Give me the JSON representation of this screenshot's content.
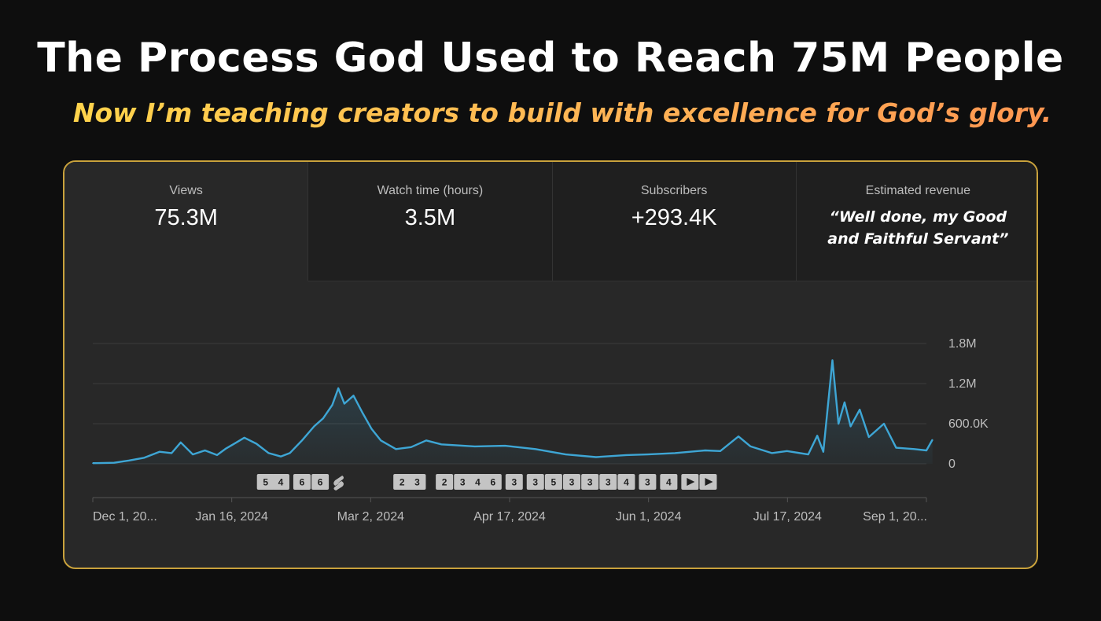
{
  "headline": "The Process God Used to Reach 75M People",
  "subheadline": "Now I’m teaching creators to build with excellence for God’s glory.",
  "metrics": [
    {
      "label": "Views",
      "value": "75.3M"
    },
    {
      "label": "Watch time (hours)",
      "value": "3.5M"
    },
    {
      "label": "Subscribers",
      "value": "+293.4K"
    },
    {
      "label": "Estimated revenue",
      "value": "“Well done, my Good and Faithful Servant”"
    }
  ],
  "colors": {
    "line": "#3ea6d5",
    "border": "#c9a23c",
    "headline": "#ffffff"
  },
  "chart_data": {
    "type": "area",
    "title": "",
    "xlabel": "",
    "ylabel": "",
    "series_name": "",
    "x_start": "Dec 1, 2023",
    "x_end": "Sep 1, 2024",
    "x_ticks": [
      "Dec 1, 20...",
      "Jan 16, 2024",
      "Mar 2, 2024",
      "Apr 17, 2024",
      "Jun 1, 2024",
      "Jul 17, 2024",
      "Sep 1, 20..."
    ],
    "y_ticks": [
      "0",
      "600.0K",
      "1.2M",
      "1.8M"
    ],
    "ylim": [
      0,
      1800000
    ],
    "grid": true,
    "values": [
      {
        "x": "Dec 1, 2023",
        "y": 10000
      },
      {
        "x": "Dec 8, 2023",
        "y": 15000
      },
      {
        "x": "Dec 13, 2023",
        "y": 50000
      },
      {
        "x": "Dec 18, 2023",
        "y": 90000
      },
      {
        "x": "Dec 23, 2023",
        "y": 180000
      },
      {
        "x": "Dec 27, 2023",
        "y": 160000
      },
      {
        "x": "Dec 30, 2023",
        "y": 320000
      },
      {
        "x": "Jan 3, 2024",
        "y": 140000
      },
      {
        "x": "Jan 7, 2024",
        "y": 200000
      },
      {
        "x": "Jan 11, 2024",
        "y": 130000
      },
      {
        "x": "Jan 14, 2024",
        "y": 230000
      },
      {
        "x": "Jan 17, 2024",
        "y": 310000
      },
      {
        "x": "Jan 20, 2024",
        "y": 390000
      },
      {
        "x": "Jan 24, 2024",
        "y": 300000
      },
      {
        "x": "Jan 28, 2024",
        "y": 160000
      },
      {
        "x": "Feb 1, 2024",
        "y": 110000
      },
      {
        "x": "Feb 4, 2024",
        "y": 160000
      },
      {
        "x": "Feb 8, 2024",
        "y": 350000
      },
      {
        "x": "Feb 12, 2024",
        "y": 560000
      },
      {
        "x": "Feb 15, 2024",
        "y": 680000
      },
      {
        "x": "Feb 18, 2024",
        "y": 880000
      },
      {
        "x": "Feb 20, 2024",
        "y": 1130000
      },
      {
        "x": "Feb 22, 2024",
        "y": 900000
      },
      {
        "x": "Feb 25, 2024",
        "y": 1020000
      },
      {
        "x": "Feb 28, 2024",
        "y": 760000
      },
      {
        "x": "Mar 2, 2024",
        "y": 520000
      },
      {
        "x": "Mar 5, 2024",
        "y": 350000
      },
      {
        "x": "Mar 10, 2024",
        "y": 220000
      },
      {
        "x": "Mar 15, 2024",
        "y": 250000
      },
      {
        "x": "Mar 20, 2024",
        "y": 350000
      },
      {
        "x": "Mar 25, 2024",
        "y": 290000
      },
      {
        "x": "Apr 5, 2024",
        "y": 260000
      },
      {
        "x": "Apr 15, 2024",
        "y": 270000
      },
      {
        "x": "Apr 25, 2024",
        "y": 220000
      },
      {
        "x": "May 5, 2024",
        "y": 140000
      },
      {
        "x": "May 15, 2024",
        "y": 100000
      },
      {
        "x": "May 25, 2024",
        "y": 130000
      },
      {
        "x": "Jun 1, 2024",
        "y": 140000
      },
      {
        "x": "Jun 10, 2024",
        "y": 160000
      },
      {
        "x": "Jun 20, 2024",
        "y": 200000
      },
      {
        "x": "Jun 25, 2024",
        "y": 190000
      },
      {
        "x": "Jul 1, 2024",
        "y": 410000
      },
      {
        "x": "Jul 5, 2024",
        "y": 260000
      },
      {
        "x": "Jul 12, 2024",
        "y": 160000
      },
      {
        "x": "Jul 17, 2024",
        "y": 190000
      },
      {
        "x": "Jul 24, 2024",
        "y": 140000
      },
      {
        "x": "Jul 27, 2024",
        "y": 420000
      },
      {
        "x": "Jul 29, 2024",
        "y": 180000
      },
      {
        "x": "Aug 1, 2024",
        "y": 1550000
      },
      {
        "x": "Aug 3, 2024",
        "y": 600000
      },
      {
        "x": "Aug 5, 2024",
        "y": 920000
      },
      {
        "x": "Aug 7, 2024",
        "y": 560000
      },
      {
        "x": "Aug 10, 2024",
        "y": 810000
      },
      {
        "x": "Aug 13, 2024",
        "y": 400000
      },
      {
        "x": "Aug 18, 2024",
        "y": 600000
      },
      {
        "x": "Aug 22, 2024",
        "y": 240000
      },
      {
        "x": "Aug 28, 2024",
        "y": 220000
      },
      {
        "x": "Sep 1, 2024",
        "y": 200000
      },
      {
        "x": "Sep 3, 2024",
        "y": 360000
      }
    ],
    "markers": [
      {
        "x": "Jan 27, 2024",
        "label": "5"
      },
      {
        "x": "Feb 1, 2024",
        "label": "4"
      },
      {
        "x": "Feb 8, 2024",
        "label": "6"
      },
      {
        "x": "Feb 14, 2024",
        "label": "6"
      },
      {
        "x": "Feb 20, 2024",
        "label": "",
        "icon": "shorts-icon"
      },
      {
        "x": "Mar 12, 2024",
        "label": "2"
      },
      {
        "x": "Mar 17, 2024",
        "label": "3"
      },
      {
        "x": "Mar 26, 2024",
        "label": "2"
      },
      {
        "x": "Apr 1, 2024",
        "label": "3"
      },
      {
        "x": "Apr 6, 2024",
        "label": "4"
      },
      {
        "x": "Apr 11, 2024",
        "label": "6"
      },
      {
        "x": "Apr 18, 2024",
        "label": "3"
      },
      {
        "x": "Apr 25, 2024",
        "label": "3"
      },
      {
        "x": "May 1, 2024",
        "label": "5"
      },
      {
        "x": "May 7, 2024",
        "label": "3"
      },
      {
        "x": "May 13, 2024",
        "label": "3"
      },
      {
        "x": "May 19, 2024",
        "label": "3"
      },
      {
        "x": "May 25, 2024",
        "label": "4"
      },
      {
        "x": "Jun 1, 2024",
        "label": "3"
      },
      {
        "x": "Jun 8, 2024",
        "label": "4"
      },
      {
        "x": "Jun 15, 2024",
        "label": "",
        "icon": "play-icon"
      },
      {
        "x": "Jun 21, 2024",
        "label": "",
        "icon": "play-icon"
      }
    ]
  }
}
